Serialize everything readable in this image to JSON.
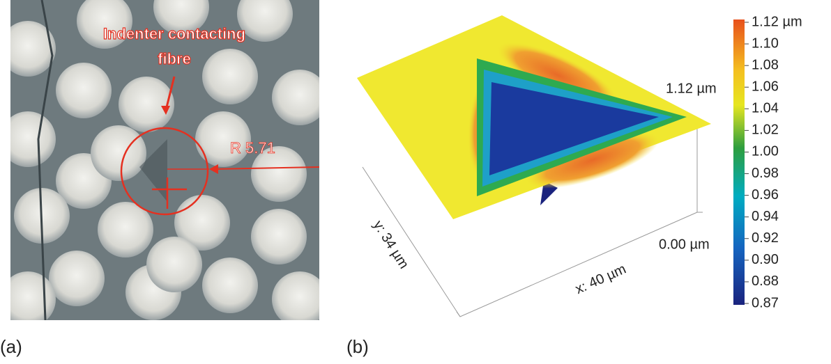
{
  "panel_a": {
    "annotation": [
      "Indenter contacting",
      "fibre"
    ],
    "measurement": "R 5.71",
    "label": "(a)"
  },
  "panel_b": {
    "z_top": "1.12 µm",
    "z_bottom": "0.00 µm",
    "x_axis": "x: 40 µm",
    "y_axis": "y: 34 µm",
    "label": "(b)",
    "colorbar": [
      "1.12 µm",
      "1.10",
      "1.08",
      "1.06",
      "1.04",
      "1.02",
      "1.00",
      "0.98",
      "0.96",
      "0.94",
      "0.92",
      "0.90",
      "0.88",
      "0.87"
    ]
  }
}
